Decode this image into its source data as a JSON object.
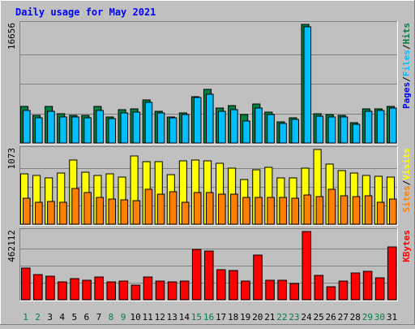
{
  "chart_data": {
    "type": "bar",
    "title": "Daily usage for May 2021",
    "categories": [
      "1",
      "2",
      "3",
      "4",
      "5",
      "6",
      "7",
      "8",
      "9",
      "10",
      "11",
      "12",
      "13",
      "14",
      "15",
      "16",
      "17",
      "18",
      "19",
      "20",
      "21",
      "22",
      "23",
      "24",
      "25",
      "26",
      "27",
      "28",
      "29",
      "30",
      "31"
    ],
    "weekend_categories": [
      "1",
      "2",
      "8",
      "9",
      "15",
      "16",
      "22",
      "23",
      "29",
      "30"
    ],
    "panels": [
      {
        "name": "hits-files-pages",
        "ymax_label": "16656",
        "ymax": 16656,
        "legend": [
          "Pages",
          "/",
          "Files",
          "/",
          "Hits"
        ],
        "series": [
          {
            "name": "Hits",
            "color": "#008040",
            "values": [
              5100,
              3850,
              5100,
              4100,
              3900,
              3900,
              5100,
              3700,
              4700,
              4800,
              6100,
              4500,
              3700,
              4200,
              6500,
              7500,
              4900,
              5200,
              4000,
              5500,
              4300,
              2950,
              3500,
              16656,
              4100,
              4000,
              3900,
              2900,
              4800,
              4800,
              5100
            ]
          },
          {
            "name": "Files",
            "color": "#00bfff",
            "values": [
              4600,
              3550,
              4400,
              3600,
              3600,
              3500,
              4600,
              3450,
              4200,
              4300,
              5700,
              4200,
              3500,
              3950,
              6400,
              6900,
              4500,
              4700,
              3100,
              4900,
              4000,
              2700,
              3300,
              16300,
              3800,
              3650,
              3600,
              2600,
              4500,
              4600,
              4900
            ]
          },
          {
            "name": "Pages",
            "color": "#0000ff",
            "values": []
          }
        ]
      },
      {
        "name": "visits-sites",
        "ymax_label": "1073",
        "ymax": 1073,
        "legend": [
          "Sites",
          "/",
          "Visits"
        ],
        "series": [
          {
            "name": "Visits",
            "color": "#ffff00",
            "values": [
              720,
              700,
              660,
              730,
              920,
              750,
              700,
              720,
              680,
              980,
              900,
              900,
              710,
              910,
              920,
              910,
              880,
              810,
              640,
              780,
              820,
              660,
              660,
              800,
              1073,
              860,
              770,
              730,
              700,
              690,
              680
            ]
          },
          {
            "name": "Sites",
            "color": "#ff8000",
            "values": [
              370,
              320,
              330,
              320,
              510,
              460,
              380,
              360,
              350,
              340,
              500,
              430,
              470,
              320,
              460,
              460,
              430,
              430,
              380,
              380,
              380,
              390,
              370,
              420,
              400,
              500,
              410,
              400,
              410,
              320,
              360
            ]
          }
        ]
      },
      {
        "name": "kbytes",
        "ymax_label": "462112",
        "ymax": 462112,
        "legend": [
          "KBytes"
        ],
        "series": [
          {
            "name": "KBytes",
            "color": "#ff0000",
            "values": [
              215000,
              170000,
              160000,
              120000,
              145000,
              130000,
              155000,
              120000,
              125000,
              100000,
              155000,
              125000,
              120000,
              125000,
              340000,
              330000,
              205000,
              200000,
              125000,
              305000,
              130000,
              130000,
              110000,
              462112,
              165000,
              90000,
              125000,
              180000,
              190000,
              150000,
              355000
            ]
          }
        ]
      }
    ]
  }
}
